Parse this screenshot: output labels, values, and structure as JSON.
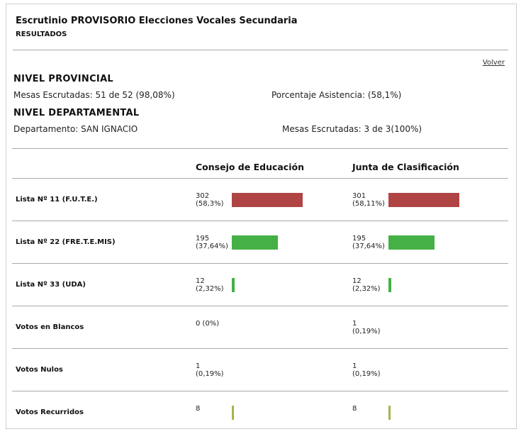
{
  "header": {
    "title": "Escrutinio PROVISORIO Elecciones Vocales Secundaria",
    "subtitle": "RESULTADOS",
    "back_link": "Volver"
  },
  "provincial": {
    "title": "NIVEL PROVINCIAL",
    "mesas": "Mesas Escrutadas: 51 de 52 (98,08%)",
    "asistencia": "Porcentaje Asistencia: (58,1%)"
  },
  "departamental": {
    "title": "NIVEL DEPARTAMENTAL",
    "departamento": "Departamento: SAN IGNACIO",
    "mesas": "Mesas Escrutadas: 3 de 3(100%)"
  },
  "colors": {
    "bar_red": "#b04444",
    "bar_green": "#45b045",
    "bar_olive": "#a6b44a"
  },
  "table": {
    "columns": [
      "Consejo de Educación",
      "Junta de Clasificación"
    ],
    "rows": [
      {
        "label": "Lista Nº 11 (F.U.T.E.)",
        "consejo": {
          "votes": "302",
          "pct": "(58,3%)",
          "share": 58.3,
          "color": "#b04444"
        },
        "junta": {
          "votes": "301",
          "pct": "(58,11%)",
          "share": 58.11,
          "color": "#b04444"
        }
      },
      {
        "label": "Lista Nº 22 (FRE.T.E.MIS)",
        "consejo": {
          "votes": "195",
          "pct": "(37,64%)",
          "share": 37.64,
          "color": "#45b045"
        },
        "junta": {
          "votes": "195",
          "pct": "(37,64%)",
          "share": 37.64,
          "color": "#45b045"
        }
      },
      {
        "label": "Lista Nº 33 (UDA)",
        "consejo": {
          "votes": "12",
          "pct": "(2,32%)",
          "share": 2.32,
          "color": "#45b045"
        },
        "junta": {
          "votes": "12",
          "pct": "(2,32%)",
          "share": 2.32,
          "color": "#45b045"
        }
      },
      {
        "label": "Votos en Blancos",
        "consejo": {
          "votes": "0 (0%)",
          "pct": "",
          "share": 0,
          "color": ""
        },
        "junta": {
          "votes": "1",
          "pct": "(0,19%)",
          "share": 0,
          "color": ""
        }
      },
      {
        "label": "Votos Nulos",
        "consejo": {
          "votes": "1",
          "pct": "(0,19%)",
          "share": 0,
          "color": ""
        },
        "junta": {
          "votes": "1",
          "pct": "(0,19%)",
          "share": 0,
          "color": ""
        }
      },
      {
        "label": "Votos Recurridos",
        "consejo": {
          "votes": "8",
          "pct": "",
          "share": 1.5,
          "color": "#a6b44a"
        },
        "junta": {
          "votes": "8",
          "pct": "",
          "share": 1.5,
          "color": "#a6b44a"
        }
      }
    ]
  }
}
